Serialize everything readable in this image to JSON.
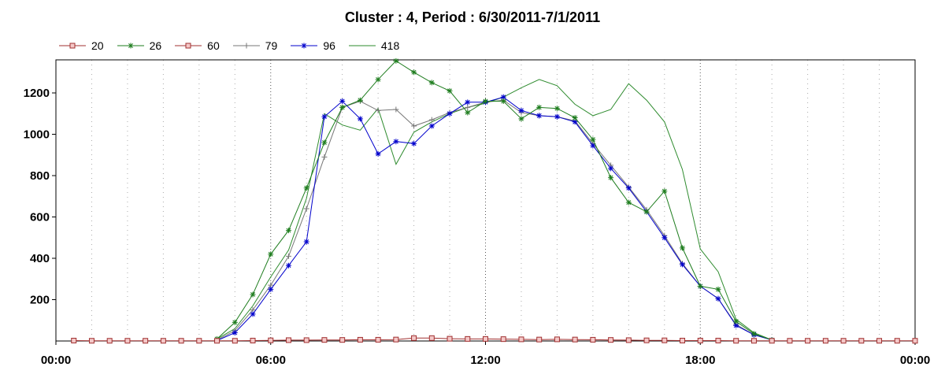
{
  "chart_data": {
    "type": "line",
    "title": "Cluster : 4, Period : 6/30/2011-7/1/2011",
    "xlabel": "",
    "ylabel": "",
    "x_range_hours": [
      0,
      24
    ],
    "x_tick_labels": [
      "00:00",
      "06:00",
      "12:00",
      "18:00",
      "00:00"
    ],
    "x_tick_hours": [
      0,
      6,
      12,
      18,
      24
    ],
    "ylim": [
      0,
      1360
    ],
    "y_ticks": [
      200,
      400,
      600,
      800,
      1000,
      1200
    ],
    "grid": "vertical dotted lines every hour, heavier at 6-hour marks",
    "legend_position": "top-left",
    "series": [
      {
        "name": "20",
        "color": "#a03030",
        "marker": "square",
        "x": [
          0.5,
          1,
          1.5,
          2,
          2.5,
          3,
          3.5,
          4,
          4.5,
          5,
          5.5,
          6,
          6.5,
          7,
          7.5,
          8,
          8.5,
          9,
          9.5,
          10,
          10.5,
          11,
          11.5,
          12,
          12.5,
          13,
          13.5,
          14,
          14.5,
          15,
          15.5,
          16,
          16.5,
          17,
          17.5,
          18,
          18.5,
          19,
          19.5,
          20,
          20.5,
          21,
          21.5,
          22,
          22.5,
          23,
          23.5,
          24
        ],
        "values": [
          2,
          1,
          1,
          1,
          1,
          1,
          1,
          1,
          1,
          1,
          2,
          3,
          4,
          4,
          5,
          5,
          6,
          6,
          7,
          14,
          14,
          11,
          10,
          10,
          9,
          8,
          7,
          8,
          7,
          6,
          5,
          4,
          3,
          3,
          2,
          2,
          2,
          1,
          1,
          1,
          1,
          1,
          1,
          1,
          1,
          1,
          1,
          1
        ]
      },
      {
        "name": "26",
        "color": "#1e7d1e",
        "marker": "asterisk",
        "x": [
          4.5,
          5,
          5.5,
          6,
          6.5,
          7,
          7.5,
          8,
          8.5,
          9,
          9.5,
          10,
          10.5,
          11,
          11.5,
          12,
          12.5,
          13,
          13.5,
          14,
          14.5,
          15,
          15.5,
          16,
          16.5,
          17,
          17.5,
          18,
          18.5,
          19,
          19.5,
          20
        ],
        "values": [
          10,
          90,
          225,
          420,
          535,
          740,
          960,
          1130,
          1165,
          1265,
          1355,
          1300,
          1250,
          1210,
          1105,
          1160,
          1160,
          1075,
          1130,
          1125,
          1080,
          975,
          790,
          670,
          625,
          725,
          450,
          265,
          250,
          95,
          35,
          5
        ]
      },
      {
        "name": "60",
        "color": "#a03030",
        "marker": "square",
        "x": [],
        "values": []
      },
      {
        "name": "79",
        "color": "#777777",
        "marker": "plus",
        "x": [
          4.5,
          5,
          5.5,
          6,
          6.5,
          7,
          7.5,
          8,
          8.5,
          9,
          9.5,
          10,
          10.5,
          11,
          11.5,
          12,
          12.5,
          13,
          13.5,
          14,
          14.5,
          15,
          15.5,
          16,
          16.5,
          17,
          17.5,
          18,
          18.5,
          19,
          19.5,
          20
        ],
        "values": [
          5,
          50,
          150,
          270,
          410,
          640,
          890,
          1130,
          1160,
          1115,
          1120,
          1040,
          1070,
          1105,
          1130,
          1155,
          1165,
          1105,
          1090,
          1085,
          1065,
          955,
          850,
          745,
          635,
          510,
          375,
          265,
          205,
          80,
          30,
          5
        ]
      },
      {
        "name": "96",
        "color": "#0000cc",
        "marker": "asterisk",
        "x": [
          4.5,
          5,
          5.5,
          6,
          6.5,
          7,
          7.5,
          8,
          8.5,
          9,
          9.5,
          10,
          10.5,
          11,
          11.5,
          12,
          12.5,
          13,
          13.5,
          14,
          14.5,
          15,
          15.5,
          16,
          16.5,
          17,
          17.5,
          18,
          18.5,
          19,
          19.5,
          20
        ],
        "values": [
          2,
          40,
          130,
          250,
          365,
          480,
          1085,
          1160,
          1075,
          905,
          965,
          955,
          1040,
          1100,
          1155,
          1155,
          1180,
          1115,
          1090,
          1085,
          1060,
          945,
          835,
          740,
          625,
          500,
          370,
          265,
          205,
          75,
          30,
          5
        ]
      },
      {
        "name": "418",
        "color": "#2e8b2e",
        "marker": "none",
        "x": [
          4.5,
          5,
          5.5,
          6,
          6.5,
          7,
          7.5,
          8,
          8.5,
          9,
          9.5,
          10,
          10.5,
          11,
          11.5,
          12,
          12.5,
          13,
          13.5,
          14,
          14.5,
          15,
          15.5,
          16,
          16.5,
          17,
          17.5,
          18,
          18.5,
          19,
          19.5,
          20
        ],
        "values": [
          10,
          60,
          170,
          310,
          440,
          690,
          1100,
          1045,
          1020,
          1125,
          855,
          1010,
          1060,
          1100,
          1130,
          1150,
          1180,
          1225,
          1265,
          1235,
          1145,
          1090,
          1120,
          1245,
          1165,
          1060,
          830,
          445,
          335,
          105,
          40,
          5
        ]
      }
    ]
  }
}
